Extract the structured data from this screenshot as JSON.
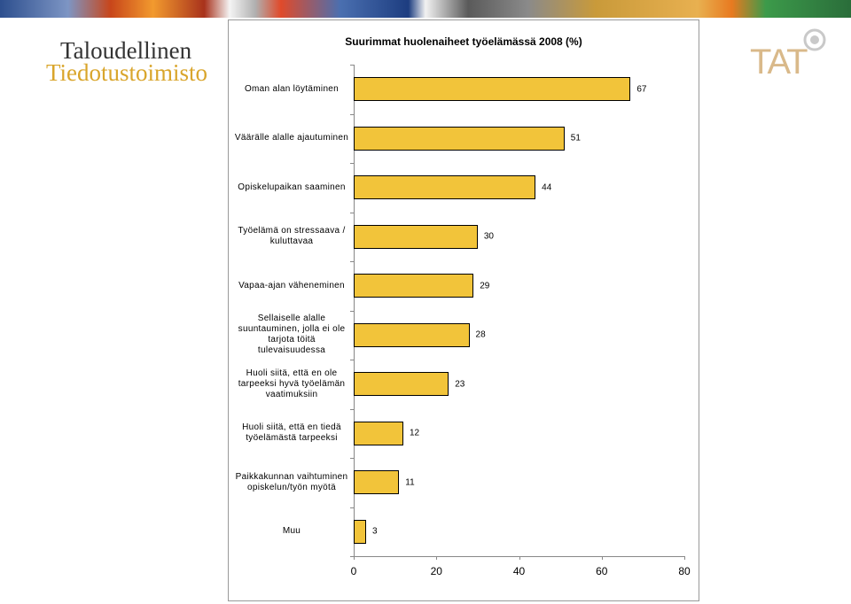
{
  "logo": {
    "line1": "Taloudellinen",
    "line2": "Tiedotustoimisto",
    "mark": "TAT"
  },
  "chart_data": {
    "type": "bar",
    "orientation": "horizontal",
    "title": "Suurimmat huolenaiheet työelämässä 2008 (%)",
    "categories": [
      "Oman alan löytäminen",
      "Väärälle alalle ajautuminen",
      "Opiskelupaikan saaminen",
      "Työelämä on stressaava / kuluttavaa",
      "Vapaa-ajan väheneminen",
      "Sellaiselle alalle suuntauminen, jolla ei ole tarjota töitä tulevaisuudessa",
      "Huoli siitä, että en ole tarpeeksi hyvä työelämän vaatimuksiin",
      "Huoli siitä, että en tiedä työelämästä tarpeeksi",
      "Paikkakunnan vaihtuminen opiskelun/työn myötä",
      "Muu"
    ],
    "values": [
      67,
      51,
      44,
      30,
      29,
      28,
      23,
      12,
      11,
      3
    ],
    "color": "#f2c43a",
    "xlim": [
      0,
      80
    ],
    "xticks": [
      0,
      20,
      40,
      60,
      80
    ]
  }
}
